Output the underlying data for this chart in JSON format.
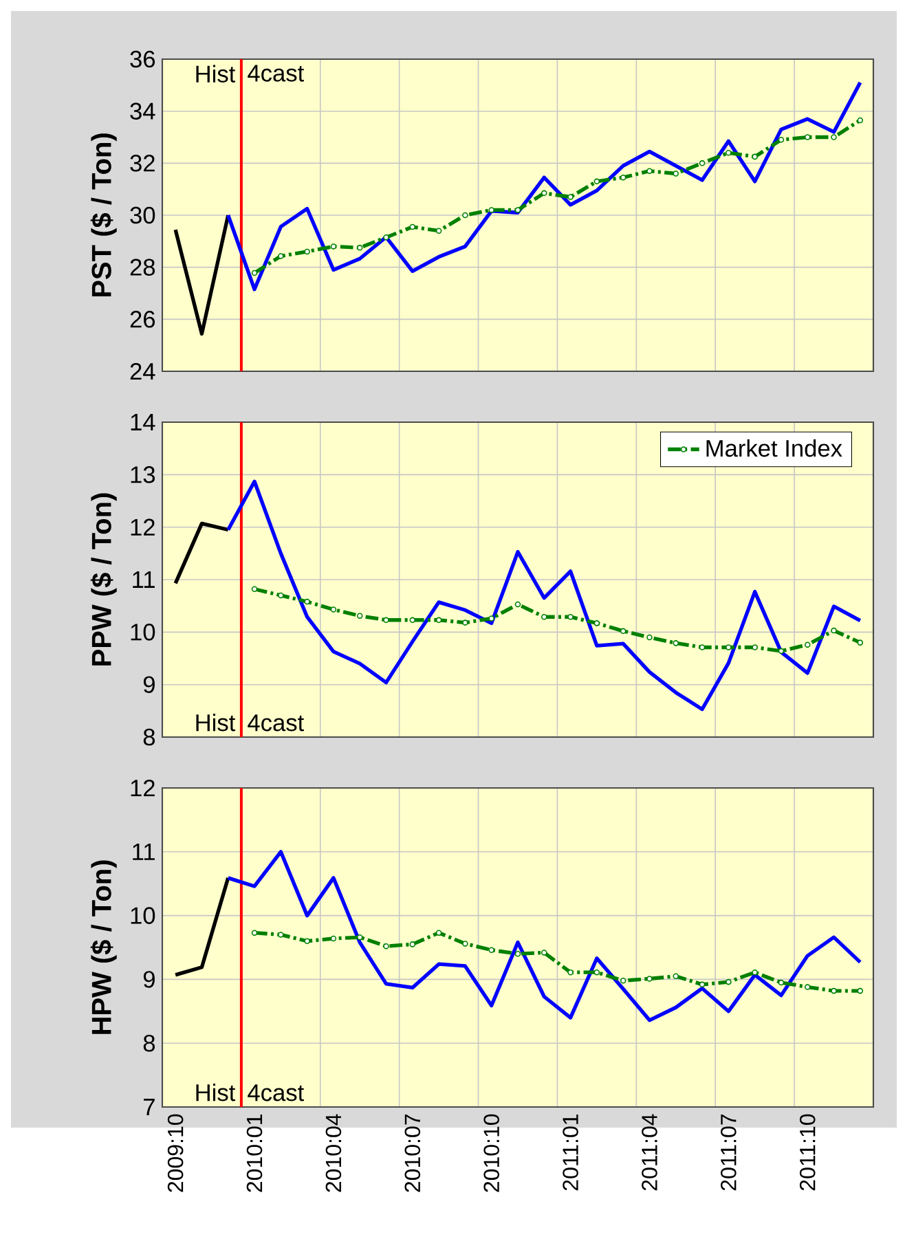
{
  "chart_data": [
    {
      "type": "line",
      "ylabel": "PST ($ / Ton)",
      "categories": [
        null,
        null,
        null,
        null,
        null,
        null,
        null,
        null,
        null,
        null,
        null,
        null,
        null,
        null,
        null,
        null,
        null,
        null,
        null,
        null,
        null,
        null,
        null,
        null,
        null,
        null,
        null
      ],
      "ylim": [
        24,
        36
      ],
      "yticks": [
        24,
        26,
        28,
        30,
        32,
        34,
        36
      ],
      "grid": true,
      "tick_labels": "y",
      "series": [
        {
          "color": "#000000",
          "values": [
            29.44,
            25.44,
            30.0,
            null,
            null,
            null,
            null,
            null,
            null,
            null,
            null,
            null,
            null,
            null,
            null,
            null,
            null,
            null,
            null,
            null,
            null,
            null,
            null,
            null,
            null,
            null,
            null
          ]
        },
        {
          "color": "#0000ff",
          "values": [
            null,
            null,
            30.0,
            27.15,
            29.56,
            30.25,
            27.9,
            28.33,
            29.16,
            27.85,
            28.4,
            28.8,
            30.16,
            30.1,
            31.45,
            30.4,
            30.95,
            31.9,
            32.45,
            31.9,
            31.35,
            32.85,
            31.3,
            33.3,
            33.7,
            33.2,
            35.1
          ]
        },
        {
          "color": "#008000",
          "marker": "circle",
          "line_style": "dashed",
          "values": [
            null,
            null,
            null,
            27.78,
            28.43,
            28.6,
            28.8,
            28.75,
            29.15,
            29.55,
            29.4,
            30.0,
            30.2,
            30.2,
            30.85,
            30.7,
            31.3,
            31.45,
            31.7,
            31.6,
            32.0,
            32.4,
            32.25,
            32.9,
            33.0,
            33.0,
            33.65
          ]
        }
      ],
      "annotations": [
        "Hist",
        "4cast"
      ]
    },
    {
      "type": "line",
      "ylabel": "PPW ($ / Ton)",
      "categories": [
        null,
        null,
        null,
        null,
        null,
        null,
        null,
        null,
        null,
        null,
        null,
        null,
        null,
        null,
        null,
        null,
        null,
        null,
        null,
        null,
        null,
        null,
        null,
        null,
        null,
        null,
        null
      ],
      "ylim": [
        8,
        14
      ],
      "yticks": [
        8,
        9,
        10,
        11,
        12,
        13,
        14
      ],
      "grid": true,
      "tick_labels": "y",
      "legend": "top right",
      "series": [
        {
          "color": "#000000",
          "values": [
            10.93,
            12.07,
            11.95,
            null,
            null,
            null,
            null,
            null,
            null,
            null,
            null,
            null,
            null,
            null,
            null,
            null,
            null,
            null,
            null,
            null,
            null,
            null,
            null,
            null,
            null,
            null,
            null
          ]
        },
        {
          "color": "#0000ff",
          "values": [
            null,
            null,
            11.95,
            12.87,
            11.5,
            10.29,
            9.63,
            9.4,
            9.04,
            9.82,
            10.57,
            10.42,
            10.17,
            11.53,
            10.65,
            11.16,
            9.74,
            9.78,
            9.24,
            8.85,
            8.53,
            9.41,
            10.77,
            9.62,
            9.22,
            10.49,
            10.22
          ]
        },
        {
          "name": "Market Index",
          "color": "#008000",
          "marker": "circle",
          "line_style": "dashed",
          "values": [
            null,
            null,
            null,
            10.82,
            10.7,
            10.58,
            10.43,
            10.31,
            10.23,
            10.23,
            10.23,
            10.18,
            10.26,
            10.53,
            10.29,
            10.29,
            10.17,
            10.02,
            9.9,
            9.79,
            9.71,
            9.71,
            9.71,
            9.64,
            9.76,
            10.03,
            9.8
          ]
        }
      ],
      "annotations": [
        "Hist",
        "4cast"
      ]
    },
    {
      "type": "line",
      "ylabel": "HPW ($ / Ton)",
      "categories": [
        "2009:10",
        null,
        null,
        "2010:01",
        null,
        null,
        "2010:04",
        null,
        null,
        "2010:07",
        null,
        null,
        "2010:10",
        null,
        null,
        "2011:01",
        null,
        null,
        "2011:04",
        null,
        null,
        "2011:07",
        null,
        null,
        "2011:10",
        null,
        null
      ],
      "ylim": [
        7,
        12
      ],
      "yticks": [
        7,
        8,
        9,
        10,
        11,
        12
      ],
      "grid": true,
      "series": [
        {
          "color": "#000000",
          "values": [
            9.07,
            9.19,
            10.59,
            null,
            null,
            null,
            null,
            null,
            null,
            null,
            null,
            null,
            null,
            null,
            null,
            null,
            null,
            null,
            null,
            null,
            null,
            null,
            null,
            null,
            null,
            null,
            null
          ]
        },
        {
          "color": "#0000ff",
          "values": [
            null,
            null,
            10.59,
            10.46,
            11.0,
            10.0,
            10.59,
            9.58,
            8.93,
            8.87,
            9.24,
            9.21,
            8.59,
            9.58,
            8.73,
            8.4,
            9.33,
            8.85,
            8.36,
            8.56,
            8.86,
            8.5,
            9.07,
            8.75,
            9.37,
            9.66,
            9.27
          ]
        },
        {
          "color": "#008000",
          "marker": "circle",
          "line_style": "dashed",
          "values": [
            null,
            null,
            null,
            9.73,
            9.7,
            9.6,
            9.64,
            9.66,
            9.52,
            9.55,
            9.73,
            9.56,
            9.46,
            9.4,
            9.42,
            9.11,
            9.11,
            8.98,
            9.01,
            9.05,
            8.92,
            8.96,
            9.11,
            8.95,
            8.88,
            8.82,
            8.82
          ]
        }
      ],
      "annotations": [
        "Hist",
        "4cast"
      ]
    }
  ]
}
